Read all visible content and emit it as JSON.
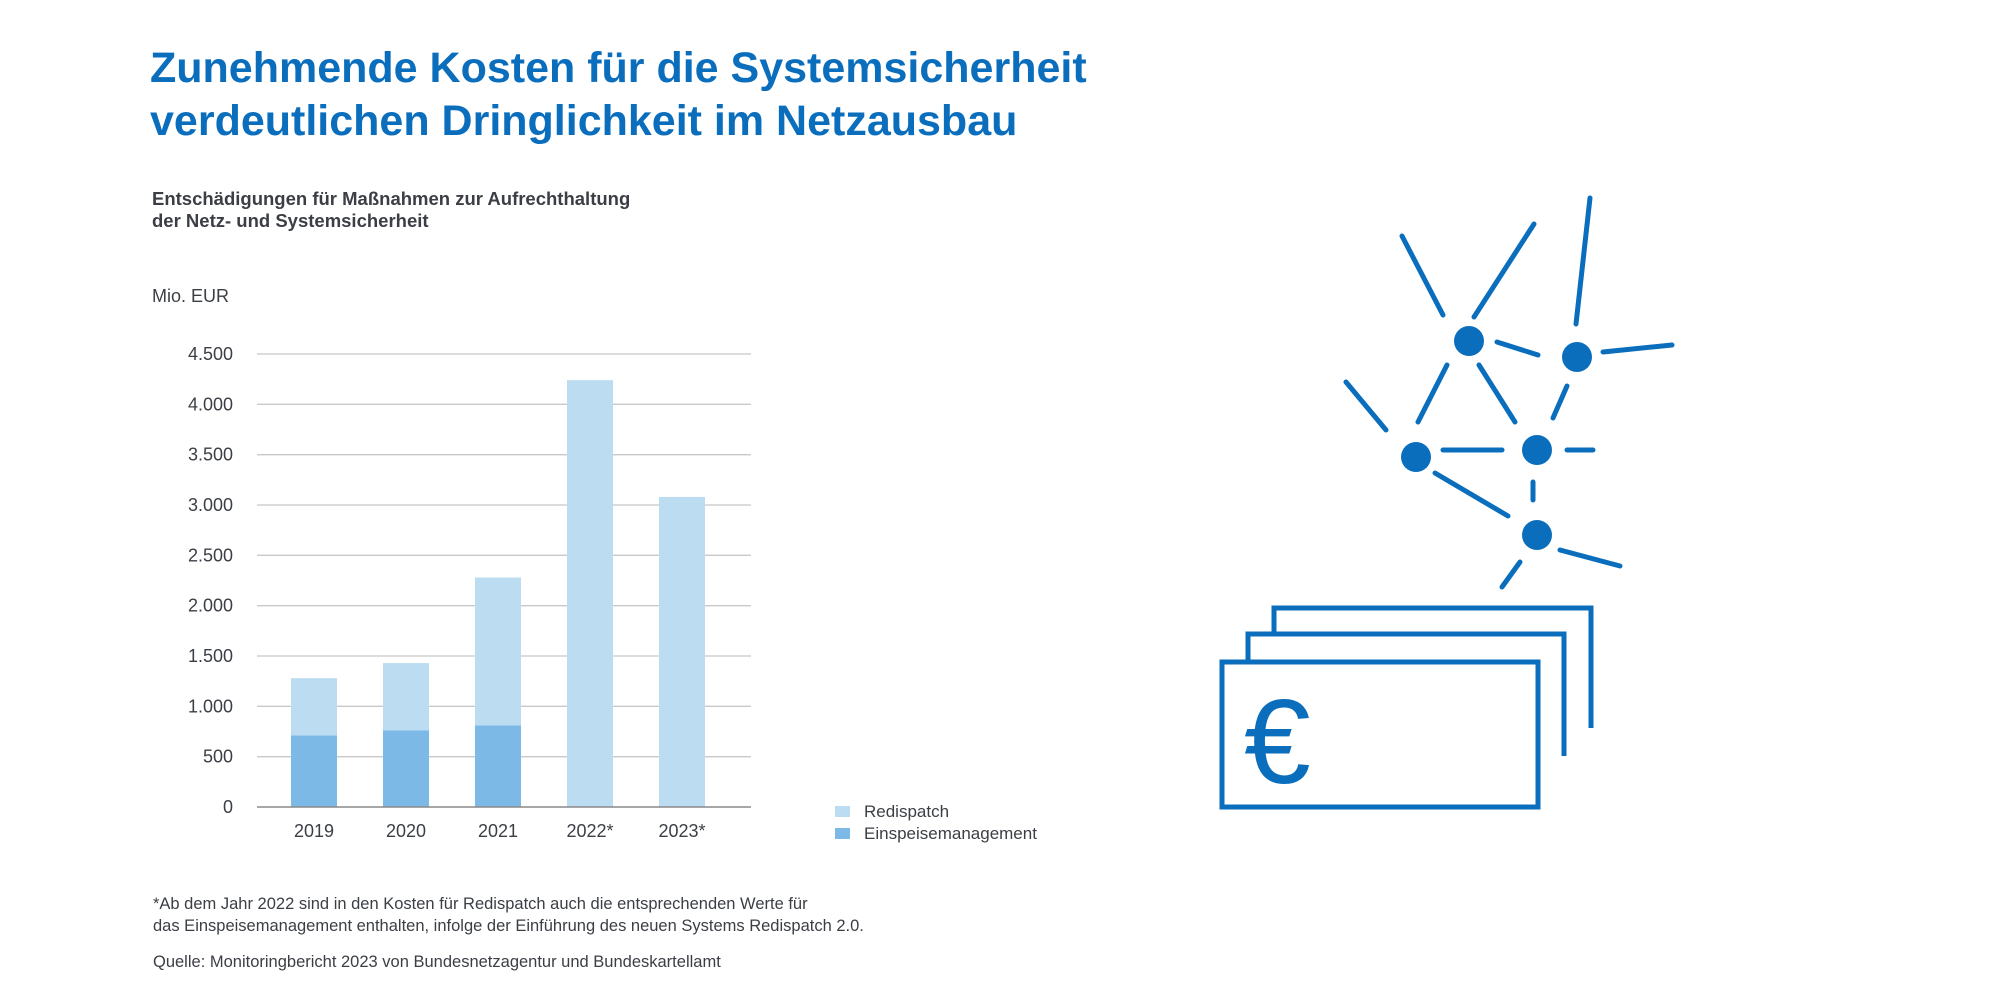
{
  "title_lines": [
    "Zunehmende Kosten für die Systemsicherheit",
    "verdeutlichen Dringlichkeit im Netzausbau"
  ],
  "subtitle_lines": [
    "Entschädigungen für Maßnahmen zur Aufrechthaltung",
    "der Netz- und Systemsicherheit"
  ],
  "footnote_lines": [
    "*Ab dem Jahr 2022 sind in den Kosten für Redispatch auch die entsprechenden Werte für",
    "das Einspeisemanagement enthalten, infolge der Einführung des neuen Systems Redispatch 2.0."
  ],
  "source": "Quelle: Monitoringbericht 2023 von Bundesnetzagentur und Bundeskartellamt",
  "colors": {
    "brand": "#0a6ebd",
    "redispatch": "#bcdcf2",
    "einspeisemanagement": "#7db9e6",
    "grid": "#c8c8c8",
    "text": "#3b3f45"
  },
  "illustration": {
    "icons": [
      "network-icon",
      "euro-banknotes-icon"
    ],
    "currency_symbol": "€"
  },
  "chart_data": {
    "type": "bar",
    "stacked": true,
    "categories": [
      "2019",
      "2020",
      "2021",
      "2022*",
      "2023*"
    ],
    "series": [
      {
        "name": "Einspeisemanagement",
        "values": [
          710,
          760,
          810,
          0,
          0
        ]
      },
      {
        "name": "Redispatch",
        "values": [
          570,
          670,
          1470,
          4240,
          3080
        ]
      }
    ],
    "totals": [
      1280,
      1430,
      2280,
      4240,
      3080
    ],
    "ylabel": "Mio. EUR",
    "ylim": [
      0,
      4500
    ],
    "yticks": [
      0,
      500,
      1000,
      1500,
      2000,
      2500,
      3000,
      3500,
      4000,
      4500
    ],
    "ytick_labels": [
      "0",
      "500",
      "1.000",
      "1.500",
      "2.000",
      "2.500",
      "3.000",
      "3.500",
      "4.000",
      "4.500"
    ],
    "legend": [
      "Redispatch",
      "Einspeisemanagement"
    ],
    "legend_position": "right",
    "grid": true
  }
}
